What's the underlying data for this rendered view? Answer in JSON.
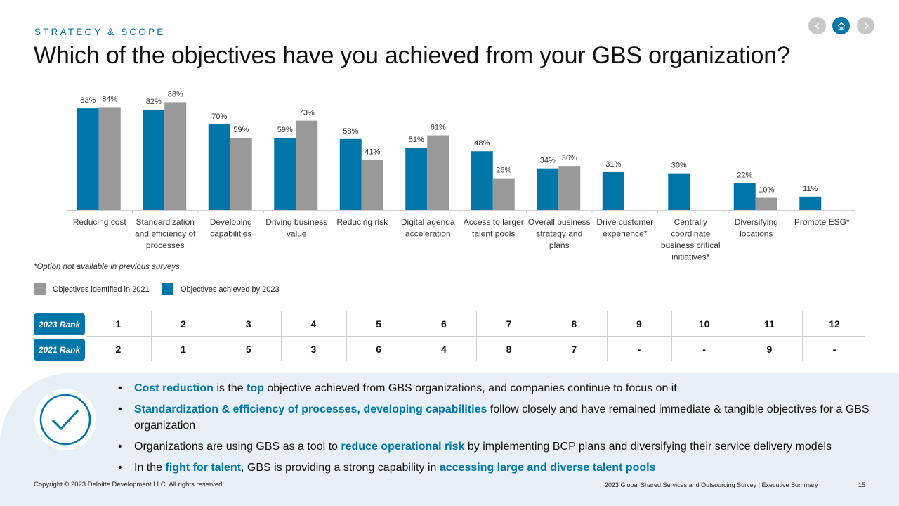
{
  "header": {
    "kicker": "STRATEGY & SCOPE",
    "title": "Which of the objectives have you achieved from your GBS organization?"
  },
  "nav": {
    "prev_icon": "chevron-left-icon",
    "home_icon": "home-icon",
    "next_icon": "chevron-right-icon"
  },
  "colors": {
    "achieved_2023": "#0076a8",
    "identified_2021": "#999999",
    "accent": "#0076a8"
  },
  "chart_data": {
    "type": "bar",
    "categories": [
      [
        "Reducing cost"
      ],
      [
        "Standardization",
        "and efficiency of",
        "processes"
      ],
      [
        "Developing",
        "capabilities"
      ],
      [
        "Driving business",
        "value"
      ],
      [
        "Reducing risk"
      ],
      [
        "Digital agenda",
        "acceleration"
      ],
      [
        "Access to larger",
        "talent pools"
      ],
      [
        "Overall business",
        "strategy and",
        "plans"
      ],
      [
        "Drive customer",
        "experience*"
      ],
      [
        "Centrally",
        "coordinate",
        "business critical",
        "initiatives*"
      ],
      [
        "Diversifying",
        "locations"
      ],
      [
        "Promote ESG*"
      ]
    ],
    "series": [
      {
        "name": "Objectives achieved by 2023",
        "color": "#0076a8",
        "values": [
          83,
          82,
          70,
          59,
          58,
          51,
          48,
          34,
          31,
          30,
          22,
          11
        ]
      },
      {
        "name": "Objectives identified in 2021",
        "color": "#999999",
        "values": [
          84,
          88,
          59,
          73,
          41,
          61,
          26,
          36,
          null,
          null,
          10,
          null
        ]
      }
    ],
    "value_suffix": "%",
    "ylim": [
      0,
      100
    ],
    "grid": false,
    "legend_position": "bottom-left"
  },
  "footnote": "*Option not available in previous surveys",
  "legend": [
    {
      "label": "Objectives identified in 2021",
      "color": "#999999"
    },
    {
      "label": "Objectives achieved by 2023",
      "color": "#0076a8"
    }
  ],
  "ranks": {
    "rank_2023_label": "2023 Rank",
    "rank_2021_label": "2021 Rank",
    "rank_2023": [
      "1",
      "2",
      "3",
      "4",
      "5",
      "6",
      "7",
      "8",
      "9",
      "10",
      "11",
      "12"
    ],
    "rank_2021": [
      "2",
      "1",
      "5",
      "3",
      "6",
      "4",
      "8",
      "7",
      "-",
      "-",
      "9",
      "-"
    ]
  },
  "takeaways": {
    "icon": "checkmark-icon",
    "b1": {
      "hl1": "Cost reduction",
      "t1": " is the ",
      "hl2": "top",
      "t2": " objective achieved from GBS organizations, and companies continue to focus on it"
    },
    "b2": {
      "hl1": "Standardization & efficiency of processes, developing capabilities",
      "t1": " follow closely and have remained immediate & tangible objectives for a GBS organization"
    },
    "b3": {
      "t1": "Organizations are using GBS as a tool to ",
      "hl1": "reduce operational risk",
      "t2": " by implementing BCP plans and diversifying their service delivery models"
    },
    "b4": {
      "t1": "In the ",
      "hl1": "fight for talent",
      "t2": ", GBS is providing a strong capability in ",
      "hl2": "accessing large and diverse talent pools"
    }
  },
  "footer": {
    "copyright": "Copyright © 2023 Deloitte Development LLC. All rights reserved.",
    "survey": "2023 Global Shared Services and Outsourcing Survey | Executive Summary",
    "page": "15"
  }
}
